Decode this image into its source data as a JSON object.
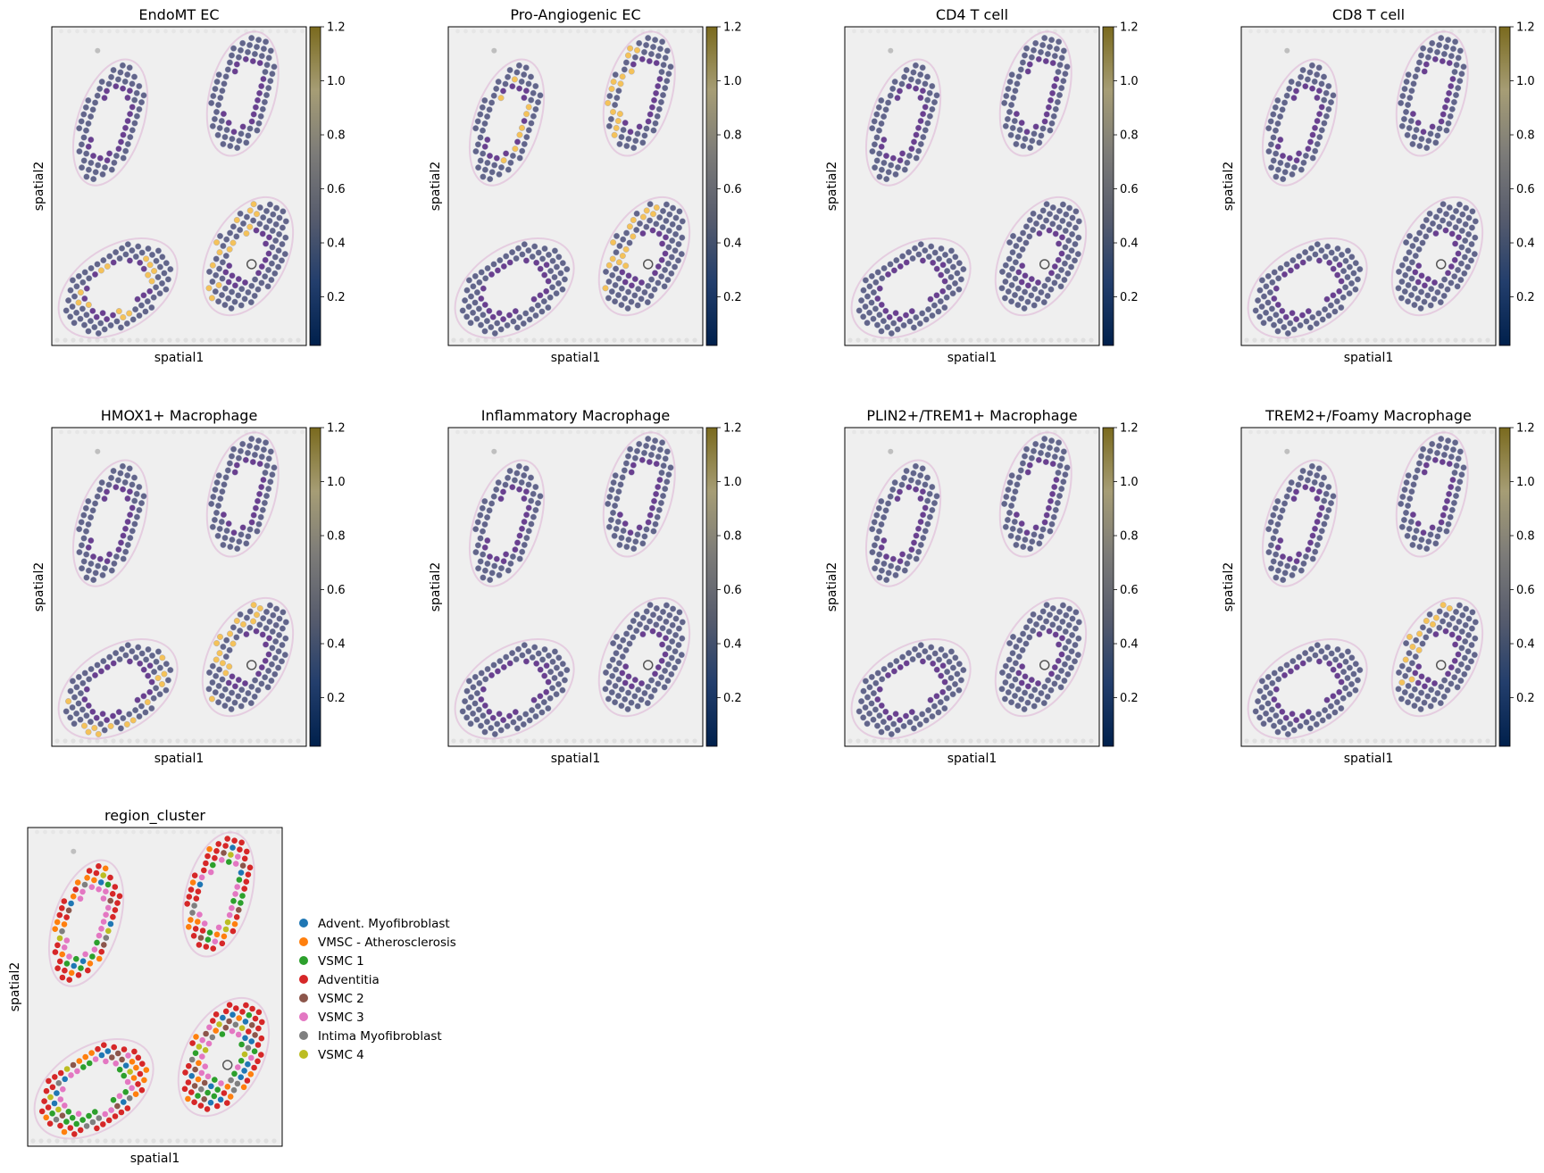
{
  "colors": {
    "tissue_bg": "#efefef",
    "spot_default": "#62658a",
    "lumen_ring": "#6a3f8f",
    "stain_pink": "#d9a3cf",
    "highlight": "#f4c25a"
  },
  "colorbar": {
    "min": 0.02,
    "max": 1.2,
    "ticks": [
      "0.2",
      "0.4",
      "0.6",
      "0.8",
      "1.0",
      "1.2"
    ],
    "tick_values": [
      0.2,
      0.4,
      0.6,
      0.8,
      1.0,
      1.2
    ],
    "colormap": "cividis"
  },
  "chart_data": [
    {
      "type": "scatter",
      "title": "EndoMT EC",
      "xlabel": "spatial1",
      "ylabel": "spatial2",
      "vmax": 1.2,
      "has_colorbar": true,
      "highlight_regions": [
        "bottom-left-inner",
        "bottom-right-left"
      ]
    },
    {
      "type": "scatter",
      "title": "Pro-Angiogenic EC",
      "xlabel": "spatial1",
      "ylabel": "spatial2",
      "vmax": 1.2,
      "has_colorbar": true,
      "highlight_regions": [
        "bottom-right-left",
        "top-right-left",
        "top-left-inner"
      ]
    },
    {
      "type": "scatter",
      "title": "CD4 T cell",
      "xlabel": "spatial1",
      "ylabel": "spatial2",
      "vmax": 1.2,
      "has_colorbar": true,
      "highlight_regions": []
    },
    {
      "type": "scatter",
      "title": "CD8 T cell",
      "xlabel": "spatial1",
      "ylabel": "spatial2",
      "vmax": 1.2,
      "has_colorbar": true,
      "highlight_regions": []
    },
    {
      "type": "scatter",
      "title": "HMOX1+ Macrophage",
      "xlabel": "spatial1",
      "ylabel": "spatial2",
      "vmax": 1.2,
      "has_colorbar": true,
      "highlight_regions": [
        "bottom-right-left",
        "bottom-left-outer"
      ]
    },
    {
      "type": "scatter",
      "title": "Inflammatory Macrophage",
      "xlabel": "spatial1",
      "ylabel": "spatial2",
      "vmax": 1.2,
      "has_colorbar": true,
      "highlight_regions": []
    },
    {
      "type": "scatter",
      "title": "PLIN2+/TREM1+ Macrophage",
      "xlabel": "spatial1",
      "ylabel": "spatial2",
      "vmax": 1.2,
      "has_colorbar": true,
      "highlight_regions": []
    },
    {
      "type": "scatter",
      "title": "TREM2+/Foamy Macrophage",
      "xlabel": "spatial1",
      "ylabel": "spatial2",
      "vmax": 1.2,
      "has_colorbar": true,
      "highlight_regions": [
        "bottom-right-left"
      ]
    },
    {
      "type": "scatter",
      "title": "region_cluster",
      "xlabel": "spatial1",
      "ylabel": "spatial2",
      "has_colorbar": false,
      "legend_position": "right",
      "legend": [
        {
          "label": "Advent. Myofibroblast",
          "color": "#1f77b4"
        },
        {
          "label": "VMSC - Atherosclerosis",
          "color": "#ff7f0e"
        },
        {
          "label": "VSMC 1",
          "color": "#2ca02c"
        },
        {
          "label": "Adventitia",
          "color": "#d62728"
        },
        {
          "label": "VSMC 2",
          "color": "#8c564b"
        },
        {
          "label": "VSMC 3",
          "color": "#e377c2"
        },
        {
          "label": "Intima Myofibroblast",
          "color": "#7f7f7f"
        },
        {
          "label": "VSMC 4",
          "color": "#bcbd22"
        }
      ]
    }
  ]
}
